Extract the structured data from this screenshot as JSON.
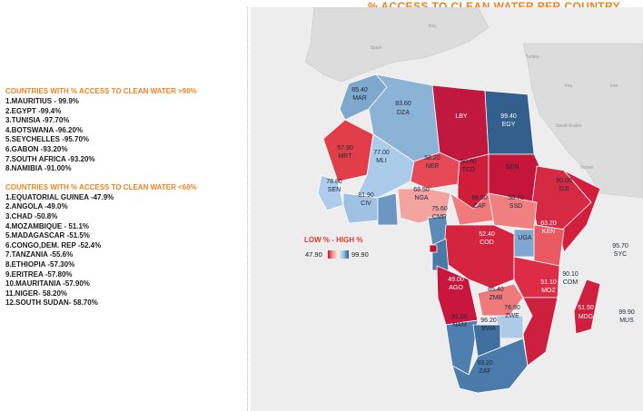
{
  "title": "% ACCESS TO CLEAN WATER PER COUNTRY.",
  "high_list": {
    "heading": "COUNTRIES WITH % ACCESS TO CLEAN WATER >90%",
    "items": [
      "1.MAURITIUS - 99.9%",
      "2.EGYPT       -99.4%",
      "3.TUNISIA   -97.70%",
      "4.BOTSWANA -96.20%",
      "5.SEYCHELLES -95.70%",
      "6.GABON        -93.20%",
      "7.SOUTH AFRICA -93.20%",
      "8.NAMIBIA       -91.00%"
    ]
  },
  "low_list": {
    "heading": "COUNTRIES WITH % ACCESS TO CLEAN WATER <60%",
    "items": [
      "1.EQUATORIAL GUINEA -47.9%",
      "2.ANGOLA  -49.0%",
      "3.CHAD -50.8%",
      "4.MOZAMBIQUE - 51.1%",
      "5.MADAGASCAR  -51.5%",
      "6.CONGO,DEM. REP -52.4%",
      "7.TANZANIA -55.6%",
      "8.ETHIOPIA -57.30%",
      "9.ERITREA -57.80%",
      "10.MAURITANIA -57.90%",
      "11.NIGER- 58.20%",
      "12.SOUTH SUDAN- 58.70%"
    ]
  },
  "color_scale": {
    "label": "LOW %   -   HIGH  %",
    "min": "47.90",
    "max": "99.90",
    "low_color": "#d8102a",
    "mid_color": "#f4f4f4",
    "high_color": "#2a5f92"
  },
  "geo_labels": [
    "Italy",
    "Spain",
    "Turkey",
    "Iraq",
    "Iran",
    "Saudi Arabia",
    "Yemen"
  ],
  "countries": [
    {
      "code": "MAR",
      "value": "85.40"
    },
    {
      "code": "DZA",
      "value": "83.60"
    },
    {
      "code": "LBY",
      "value": ""
    },
    {
      "code": "EGY",
      "value": "99.40"
    },
    {
      "code": "MRT",
      "value": "57.90"
    },
    {
      "code": "MLI",
      "value": "77.00"
    },
    {
      "code": "NER",
      "value": "58.20"
    },
    {
      "code": "TCD",
      "value": "50.80"
    },
    {
      "code": "SDN",
      "value": ""
    },
    {
      "code": "DJI",
      "value": "90.00"
    },
    {
      "code": "NGA",
      "value": "68.50"
    },
    {
      "code": "CAF",
      "value": "68.50"
    },
    {
      "code": "SSD",
      "value": "58.70"
    },
    {
      "code": "KEN",
      "value": "63.20"
    },
    {
      "code": "SEN",
      "value": "78.80"
    },
    {
      "code": "CIV",
      "value": "81.90"
    },
    {
      "code": "CMR",
      "value": "75.60"
    },
    {
      "code": "COD",
      "value": "52.40"
    },
    {
      "code": "UGA",
      "value": ""
    },
    {
      "code": "AGO",
      "value": "49.00"
    },
    {
      "code": "ZMB",
      "value": "65.40"
    },
    {
      "code": "MOZ",
      "value": "51.10"
    },
    {
      "code": "ZWE",
      "value": "76.90"
    },
    {
      "code": "NAM",
      "value": "91.00"
    },
    {
      "code": "BWA",
      "value": "96.20"
    },
    {
      "code": "ZAF",
      "value": "93.20"
    },
    {
      "code": "MDG",
      "value": "51.50"
    },
    {
      "code": "COM",
      "value": "90.10"
    },
    {
      "code": "SYC",
      "value": "95.70"
    },
    {
      "code": "MUS",
      "value": "99.90"
    }
  ]
}
